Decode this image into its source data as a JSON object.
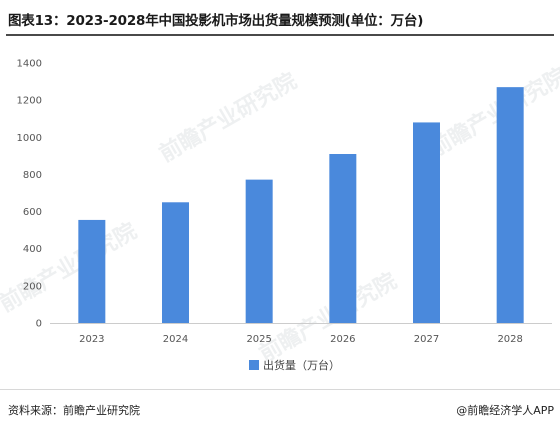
{
  "title": "图表13：2023-2028年中国投影机市场出货量规模预测(单位：万台)",
  "footer": {
    "source": "资料来源：前瞻产业研究院",
    "credit": "@前瞻经济学人APP"
  },
  "watermark": "前瞻产业研究院",
  "colors": {
    "bar": "#4a89dc",
    "grid": "#e6e6e6",
    "axis": "#cccccc"
  },
  "chart_data": {
    "type": "bar",
    "categories": [
      "2023",
      "2024",
      "2025",
      "2026",
      "2027",
      "2028"
    ],
    "series": [
      {
        "name": "出货量（万台）",
        "values": [
          555,
          650,
          772,
          910,
          1080,
          1270
        ]
      }
    ],
    "title": "图表13：2023-2028年中国投影机市场出货量规模预测(单位：万台)",
    "xlabel": "",
    "ylabel": "",
    "ylim": [
      0,
      1400
    ],
    "yticks": [
      "0",
      "200",
      "400",
      "600",
      "800",
      "1000",
      "1200",
      "1400"
    ],
    "grid": false,
    "legend": "bottom-center"
  }
}
